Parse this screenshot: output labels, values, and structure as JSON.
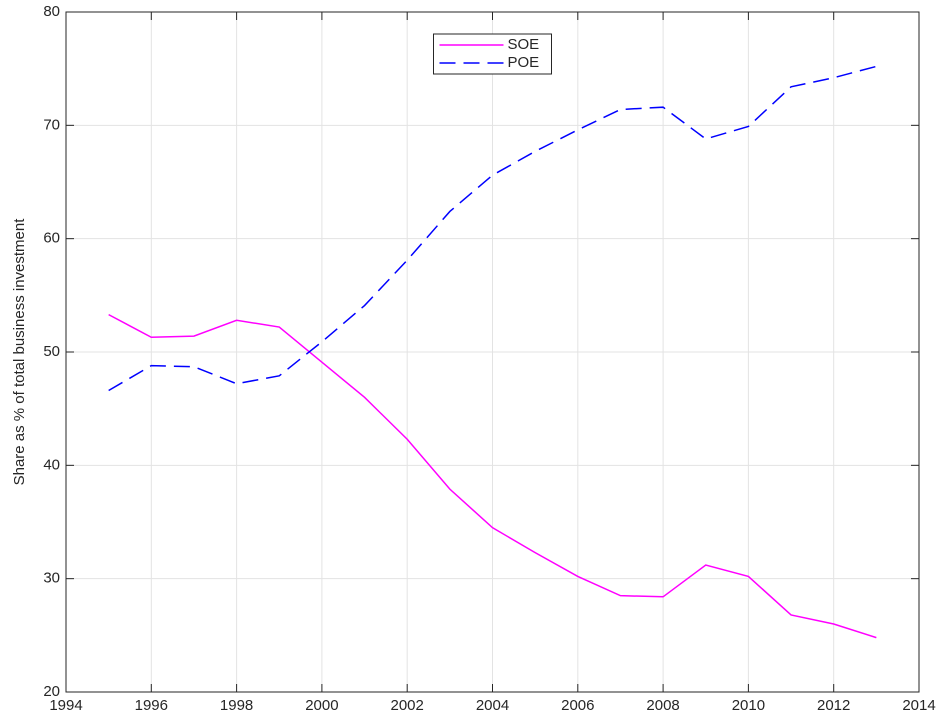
{
  "chart_data": {
    "type": "line",
    "ylabel": "Share as % of total business investment",
    "x": [
      1995,
      1996,
      1997,
      1998,
      1999,
      2000,
      2001,
      2002,
      2003,
      2004,
      2005,
      2006,
      2007,
      2008,
      2009,
      2010,
      2011,
      2012,
      2013
    ],
    "series": [
      {
        "name": "SOE",
        "color": "#ff00ff",
        "style": "solid",
        "values": [
          53.3,
          51.3,
          51.4,
          52.8,
          52.2,
          49.1,
          46.0,
          42.3,
          37.9,
          34.5,
          32.3,
          30.2,
          28.5,
          28.4,
          31.2,
          30.2,
          26.8,
          26.0,
          24.8
        ]
      },
      {
        "name": "POE",
        "color": "#0000ff",
        "style": "dashed",
        "values": [
          46.6,
          48.8,
          48.7,
          47.2,
          47.9,
          50.9,
          54.1,
          58.1,
          62.4,
          65.6,
          67.7,
          69.6,
          71.4,
          71.6,
          68.8,
          69.9,
          73.4,
          74.2,
          75.2
        ]
      }
    ],
    "xlim": [
      1994,
      2014
    ],
    "xticks": [
      1994,
      1996,
      1998,
      2000,
      2002,
      2004,
      2006,
      2008,
      2010,
      2012,
      2014
    ],
    "ylim": [
      20,
      80
    ],
    "yticks": [
      20,
      30,
      40,
      50,
      60,
      70,
      80
    ],
    "grid": true,
    "legend": "north"
  }
}
